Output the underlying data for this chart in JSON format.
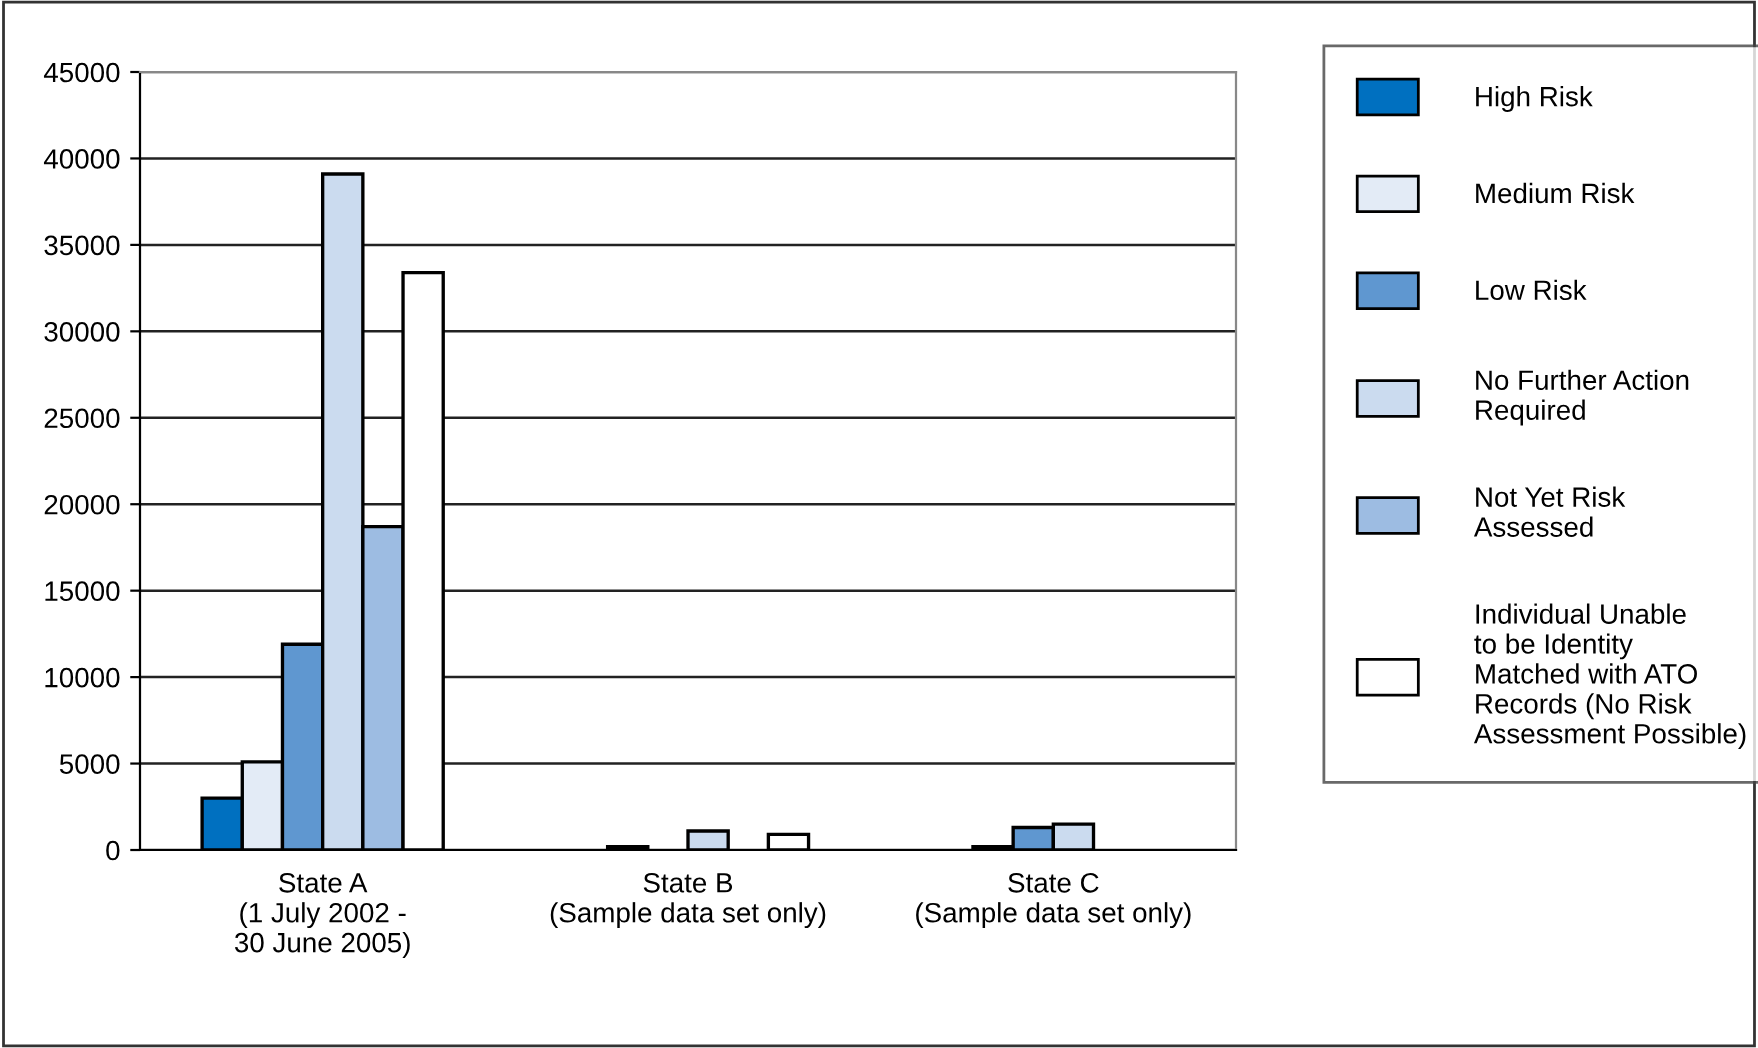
{
  "chart_data": {
    "type": "bar",
    "categories": [
      "State A\n(1 July 2002 -\n30 June 2005)",
      "State B\n(Sample data set only)",
      "State C\n(Sample data set only)"
    ],
    "series": [
      {
        "name": "High Risk",
        "color": "#0070c0",
        "values": [
          3000,
          null,
          null
        ]
      },
      {
        "name": "Medium Risk",
        "color": "#e3ebf6",
        "values": [
          5100,
          200,
          200
        ]
      },
      {
        "name": "Low Risk",
        "color": "#5f97d0",
        "values": [
          11900,
          null,
          1300
        ]
      },
      {
        "name": "No Further Action\nRequired",
        "color": "#cbdbef",
        "values": [
          39100,
          1100,
          1500
        ]
      },
      {
        "name": "Not Yet Risk\nAssessed",
        "color": "#9dbce2",
        "values": [
          18700,
          null,
          null
        ]
      },
      {
        "name": "Individual Unable\nto be Identity\nMatched with ATO\nRecords (No Risk\nAssessment Possible)",
        "color": "#ffffff",
        "values": [
          33400,
          900,
          null
        ]
      }
    ],
    "ylim": [
      0,
      45000
    ],
    "yticks": [
      0,
      5000,
      10000,
      15000,
      20000,
      25000,
      30000,
      35000,
      40000,
      45000
    ],
    "grid": "y",
    "legend": "right"
  }
}
